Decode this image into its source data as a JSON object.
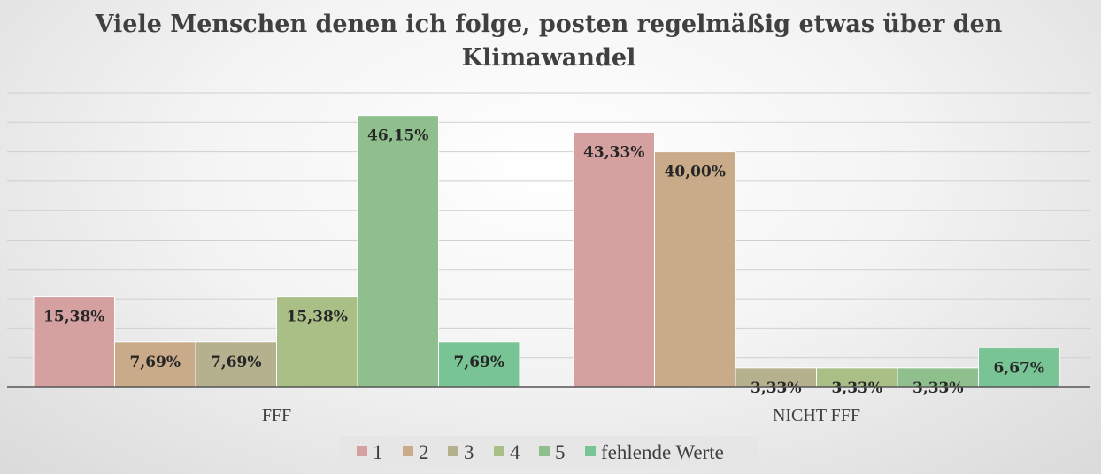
{
  "chart_data": {
    "type": "bar",
    "title_lines": [
      "Viele Menschen denen ich folge, posten regelmäßig etwas über den",
      "Klimawandel"
    ],
    "categories": [
      "FFF",
      "NICHT FFF"
    ],
    "series": [
      {
        "name": "1",
        "color": "#d4a0a0",
        "values": [
          15.38,
          43.33
        ],
        "labels": [
          "15,38%",
          "43,33%"
        ]
      },
      {
        "name": "2",
        "color": "#c9ab8a",
        "values": [
          7.69,
          40.0
        ],
        "labels": [
          "7,69%",
          "40,00%"
        ]
      },
      {
        "name": "3",
        "color": "#b5b08e",
        "values": [
          7.69,
          3.33
        ],
        "labels": [
          "7,69%",
          "3,33%"
        ]
      },
      {
        "name": "4",
        "color": "#a9bf86",
        "values": [
          15.38,
          3.33
        ],
        "labels": [
          "15,38%",
          "3,33%"
        ]
      },
      {
        "name": "5",
        "color": "#8fbf8d",
        "values": [
          46.15,
          3.33
        ],
        "labels": [
          "46,15%",
          "3,33%"
        ]
      },
      {
        "name": "fehlende Werte",
        "color": "#78c495",
        "values": [
          7.69,
          6.67
        ],
        "labels": [
          "7,69%",
          "6,67%"
        ]
      }
    ],
    "ylim": [
      0,
      50
    ],
    "gridlines": true,
    "legend_position": "bottom"
  }
}
